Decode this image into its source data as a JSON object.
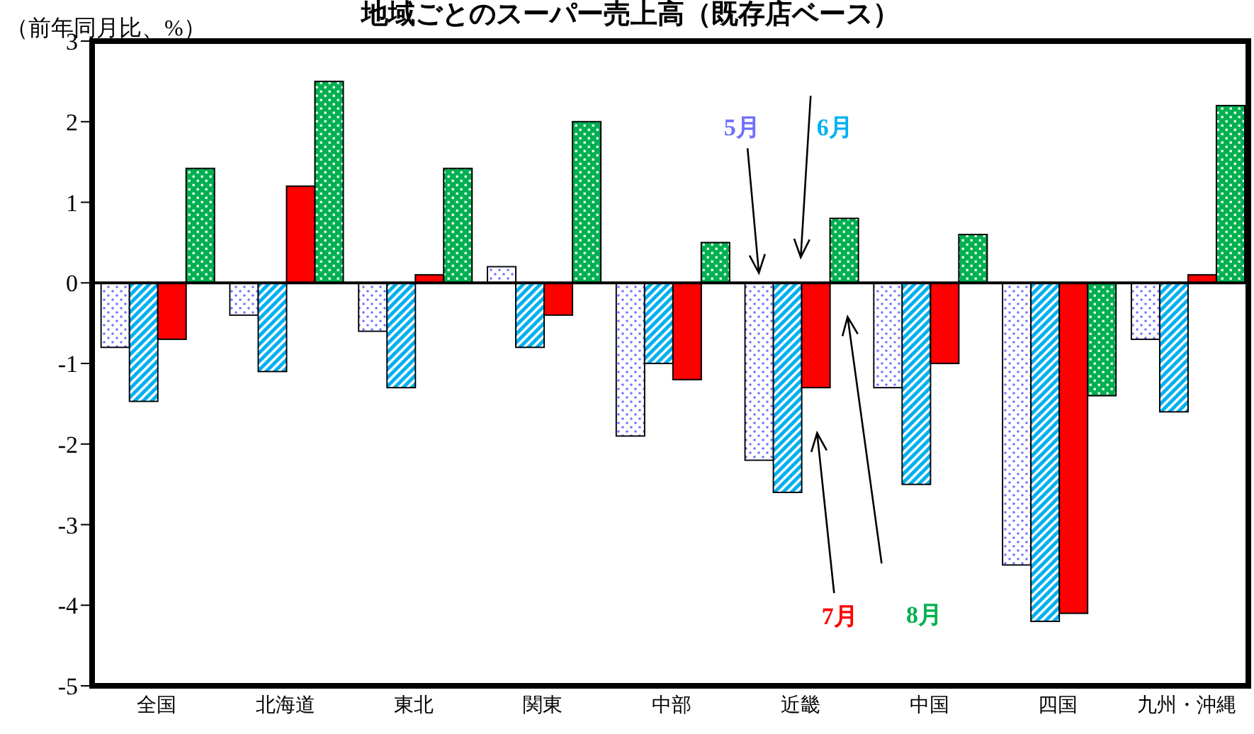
{
  "chart_data": {
    "type": "bar",
    "title": "地域ごとのスーパー売上高（既存店ベース）",
    "ylabel": "（前年同月比、%）",
    "categories": [
      "全国",
      "北海道",
      "東北",
      "関東",
      "中部",
      "近畿",
      "中国",
      "四国",
      "九州・沖縄"
    ],
    "series": [
      {
        "name": "5月",
        "color": "#7070ff",
        "values": [
          -0.8,
          -0.4,
          -0.6,
          0.2,
          -1.9,
          -2.2,
          -1.3,
          -3.5,
          -0.7
        ]
      },
      {
        "name": "6月",
        "color": "#00b0f0",
        "values": [
          -1.47,
          -1.1,
          -1.3,
          -0.8,
          -1.0,
          -2.6,
          -2.5,
          -4.2,
          -1.6
        ]
      },
      {
        "name": "7月",
        "color": "#ff0000",
        "values": [
          -0.7,
          1.2,
          0.1,
          -0.4,
          -1.2,
          -1.3,
          -1.0,
          -4.1,
          0.1
        ]
      },
      {
        "name": "8月",
        "color": "#00b050",
        "values": [
          1.42,
          2.5,
          1.42,
          2.0,
          0.5,
          0.8,
          0.6,
          -1.4,
          2.2
        ]
      }
    ],
    "ylim": [
      -5,
      3
    ],
    "yticks": [
      -5,
      -4,
      -3,
      -2,
      -1,
      0,
      1,
      2,
      3
    ]
  }
}
